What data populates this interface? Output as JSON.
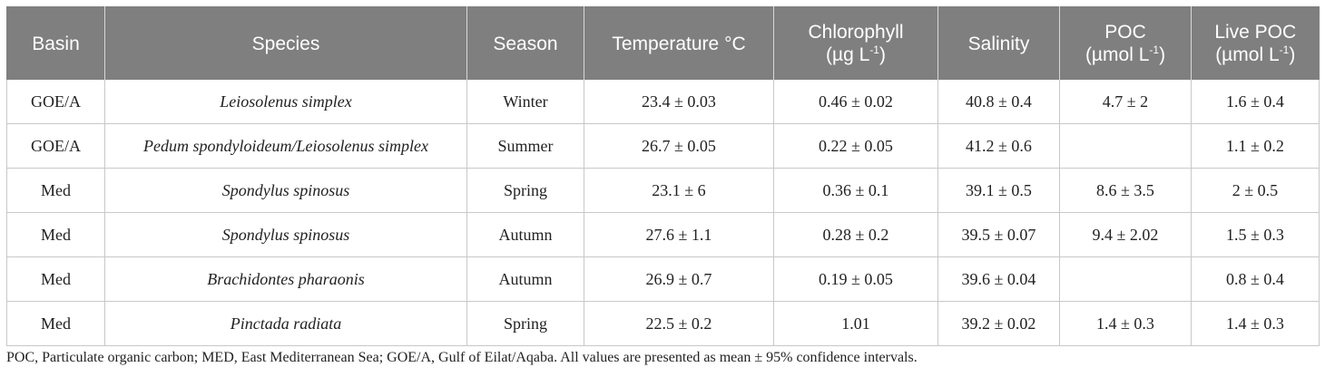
{
  "headers": {
    "basin": "Basin",
    "species": "Species",
    "season": "Season",
    "temperature": "Temperature °C",
    "chlorophyll": "Chlorophyll",
    "chlorophyll_unit": "(µg L",
    "salinity": "Salinity",
    "poc": "POC",
    "poc_unit": "(µmol L",
    "live_poc": "Live POC",
    "live_poc_unit": "(µmol L",
    "unit_exp": "-1",
    "unit_close": ")"
  },
  "rows": [
    {
      "basin": "GOE/A",
      "species": "Leiosolenus simplex",
      "season": "Winter",
      "temperature": "23.4 ± 0.03",
      "chlorophyll": "0.46 ± 0.02",
      "salinity": "40.8 ± 0.4",
      "poc": "4.7 ± 2",
      "live_poc": "1.6 ± 0.4"
    },
    {
      "basin": "GOE/A",
      "species": "Pedum spondyloideum/Leiosolenus simplex",
      "season": "Summer",
      "temperature": "26.7 ± 0.05",
      "chlorophyll": "0.22 ± 0.05",
      "salinity": "41.2 ± 0.6",
      "poc": "",
      "live_poc": "1.1 ± 0.2"
    },
    {
      "basin": "Med",
      "species": "Spondylus spinosus",
      "season": "Spring",
      "temperature": "23.1 ± 6",
      "chlorophyll": "0.36 ± 0.1",
      "salinity": "39.1 ± 0.5",
      "poc": "8.6 ± 3.5",
      "live_poc": "2 ± 0.5"
    },
    {
      "basin": "Med",
      "species": "Spondylus spinosus",
      "season": "Autumn",
      "temperature": "27.6 ± 1.1",
      "chlorophyll": "0.28 ± 0.2",
      "salinity": "39.5 ± 0.07",
      "poc": "9.4 ± 2.02",
      "live_poc": "1.5 ± 0.3"
    },
    {
      "basin": "Med",
      "species": "Brachidontes pharaonis",
      "season": "Autumn",
      "temperature": "26.9 ± 0.7",
      "chlorophyll": "0.19 ± 0.05",
      "salinity": "39.6 ± 0.04",
      "poc": "",
      "live_poc": "0.8 ± 0.4"
    },
    {
      "basin": "Med",
      "species": "Pinctada radiata",
      "season": "Spring",
      "temperature": "22.5 ± 0.2",
      "chlorophyll": "1.01",
      "salinity": "39.2 ± 0.02",
      "poc": "1.4 ± 0.3",
      "live_poc": "1.4 ± 0.3"
    }
  ],
  "footnote": "POC, Particulate organic carbon; MED, East Mediterranean Sea; GOE/A, Gulf of Eilat/Aqaba. All values are presented as mean ± 95% confidence intervals."
}
